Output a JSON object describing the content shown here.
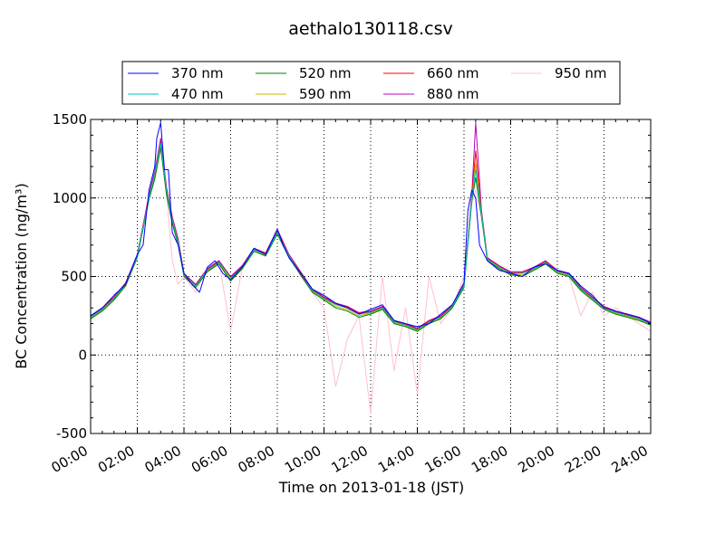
{
  "chart_data": {
    "type": "line",
    "title": "aethalo130118.csv",
    "xlabel": "Time on 2013-01-18 (JST)",
    "ylabel": "BC Concentration (ng/m³)",
    "xlim": [
      "00:00",
      "24:00"
    ],
    "ylim": [
      -500,
      1500
    ],
    "x_ticks": [
      "00:00",
      "02:00",
      "04:00",
      "06:00",
      "08:00",
      "10:00",
      "12:00",
      "14:00",
      "16:00",
      "18:00",
      "20:00",
      "22:00",
      "24:00"
    ],
    "y_ticks": [
      -500,
      0,
      500,
      1000,
      1500
    ],
    "grid": true,
    "legend_position": "top",
    "series": [
      {
        "name": "370 nm",
        "color": "#0000ff",
        "x": [
          "00:00",
          "00:30",
          "01:00",
          "01:30",
          "02:00",
          "02:15",
          "02:30",
          "02:45",
          "02:50",
          "03:00",
          "03:10",
          "03:20",
          "03:30",
          "03:45",
          "04:00",
          "04:20",
          "04:40",
          "05:00",
          "05:20",
          "05:40",
          "06:00",
          "06:30",
          "07:00",
          "07:30",
          "08:00",
          "08:15",
          "08:30",
          "09:00",
          "09:30",
          "10:00",
          "10:30",
          "11:00",
          "11:30",
          "12:00",
          "12:30",
          "13:00",
          "13:30",
          "14:00",
          "14:30",
          "15:00",
          "15:30",
          "16:00",
          "16:10",
          "16:20",
          "16:30",
          "16:40",
          "17:00",
          "17:30",
          "18:00",
          "18:30",
          "19:00",
          "19:30",
          "20:00",
          "20:30",
          "21:00",
          "21:30",
          "22:00",
          "22:30",
          "23:00",
          "23:30",
          "24:00"
        ],
        "y": [
          250,
          300,
          380,
          450,
          640,
          700,
          1050,
          1200,
          1380,
          1480,
          1180,
          1180,
          780,
          700,
          520,
          450,
          400,
          560,
          600,
          520,
          480,
          560,
          680,
          640,
          800,
          700,
          620,
          520,
          420,
          380,
          330,
          300,
          260,
          290,
          320,
          220,
          200,
          180,
          200,
          260,
          320,
          460,
          920,
          1050,
          1000,
          700,
          600,
          540,
          520,
          500,
          560,
          580,
          540,
          520,
          440,
          380,
          300,
          280,
          260,
          240,
          200
        ]
      },
      {
        "name": "470 nm",
        "color": "#00bfbf",
        "x": [
          "00:00",
          "00:30",
          "01:00",
          "01:30",
          "02:00",
          "02:30",
          "02:45",
          "03:00",
          "03:15",
          "03:30",
          "03:45",
          "04:00",
          "04:30",
          "05:00",
          "05:30",
          "06:00",
          "06:30",
          "07:00",
          "07:30",
          "08:00",
          "08:30",
          "09:00",
          "09:30",
          "10:00",
          "10:30",
          "11:00",
          "11:30",
          "12:00",
          "12:30",
          "13:00",
          "13:30",
          "14:00",
          "14:30",
          "15:00",
          "15:30",
          "16:00",
          "16:20",
          "16:30",
          "16:45",
          "17:00",
          "17:30",
          "18:00",
          "18:30",
          "19:00",
          "19:30",
          "20:00",
          "20:30",
          "21:00",
          "21:30",
          "22:00",
          "22:30",
          "23:00",
          "23:30",
          "24:00"
        ],
        "y": [
          240,
          290,
          360,
          450,
          630,
          1000,
          1150,
          1350,
          1050,
          860,
          720,
          510,
          440,
          540,
          590,
          490,
          560,
          670,
          640,
          780,
          630,
          520,
          410,
          360,
          320,
          300,
          260,
          270,
          300,
          210,
          190,
          160,
          210,
          240,
          310,
          440,
          1000,
          1180,
          900,
          610,
          560,
          520,
          520,
          550,
          590,
          530,
          510,
          420,
          360,
          300,
          270,
          250,
          230,
          200
        ]
      },
      {
        "name": "520 nm",
        "color": "#008000",
        "x": [
          "00:00",
          "00:30",
          "01:00",
          "01:30",
          "02:00",
          "02:30",
          "02:45",
          "03:00",
          "03:15",
          "03:30",
          "03:45",
          "04:00",
          "04:30",
          "05:00",
          "05:30",
          "06:00",
          "06:30",
          "07:00",
          "07:30",
          "08:00",
          "08:30",
          "09:00",
          "09:30",
          "10:00",
          "10:30",
          "11:00",
          "11:30",
          "12:00",
          "12:30",
          "13:00",
          "13:30",
          "14:00",
          "14:30",
          "15:00",
          "15:30",
          "16:00",
          "16:20",
          "16:30",
          "16:45",
          "17:00",
          "17:30",
          "18:00",
          "18:30",
          "19:00",
          "19:30",
          "20:00",
          "20:30",
          "21:00",
          "21:30",
          "22:00",
          "22:30",
          "23:00",
          "23:30",
          "24:00"
        ],
        "y": [
          230,
          280,
          350,
          440,
          620,
          990,
          1120,
          1320,
          1020,
          840,
          700,
          500,
          430,
          530,
          580,
          470,
          550,
          660,
          630,
          770,
          620,
          510,
          400,
          350,
          300,
          280,
          240,
          260,
          290,
          200,
          180,
          150,
          200,
          230,
          300,
          430,
          980,
          1130,
          880,
          600,
          550,
          510,
          500,
          540,
          580,
          520,
          500,
          410,
          350,
          290,
          260,
          240,
          220,
          190
        ]
      },
      {
        "name": "590 nm",
        "color": "#bfbf00",
        "x": [
          "00:00",
          "00:30",
          "01:00",
          "01:30",
          "02:00",
          "02:30",
          "02:45",
          "03:00",
          "03:15",
          "03:30",
          "03:45",
          "04:00",
          "04:30",
          "05:00",
          "05:30",
          "06:00",
          "06:30",
          "07:00",
          "07:30",
          "08:00",
          "08:30",
          "09:00",
          "09:30",
          "10:00",
          "10:30",
          "11:00",
          "11:30",
          "12:00",
          "12:30",
          "13:00",
          "13:30",
          "14:00",
          "14:30",
          "15:00",
          "15:30",
          "16:00",
          "16:20",
          "16:30",
          "16:45",
          "17:00",
          "17:30",
          "18:00",
          "18:30",
          "19:00",
          "19:30",
          "20:00",
          "20:30",
          "21:00",
          "21:30",
          "22:00",
          "22:30",
          "23:00",
          "23:30",
          "24:00"
        ],
        "y": [
          235,
          285,
          355,
          445,
          625,
          995,
          1140,
          1340,
          1030,
          850,
          710,
          505,
          435,
          535,
          585,
          480,
          555,
          665,
          635,
          775,
          625,
          515,
          405,
          355,
          310,
          290,
          250,
          265,
          295,
          205,
          185,
          155,
          205,
          235,
          305,
          435,
          990,
          1220,
          890,
          605,
          555,
          515,
          510,
          545,
          585,
          525,
          505,
          415,
          355,
          295,
          265,
          245,
          225,
          195
        ]
      },
      {
        "name": "660 nm",
        "color": "#ff0000",
        "x": [
          "00:00",
          "00:30",
          "01:00",
          "01:30",
          "02:00",
          "02:30",
          "02:45",
          "03:00",
          "03:15",
          "03:30",
          "03:45",
          "04:00",
          "04:30",
          "05:00",
          "05:30",
          "06:00",
          "06:30",
          "07:00",
          "07:30",
          "08:00",
          "08:30",
          "09:00",
          "09:30",
          "10:00",
          "10:30",
          "11:00",
          "11:30",
          "12:00",
          "12:30",
          "13:00",
          "13:30",
          "14:00",
          "14:30",
          "15:00",
          "15:30",
          "16:00",
          "16:20",
          "16:30",
          "16:45",
          "17:00",
          "17:30",
          "18:00",
          "18:30",
          "19:00",
          "19:30",
          "20:00",
          "20:30",
          "21:00",
          "21:30",
          "22:00",
          "22:30",
          "23:00",
          "23:30",
          "24:00"
        ],
        "y": [
          245,
          295,
          365,
          455,
          635,
          1010,
          1160,
          1360,
          1060,
          870,
          730,
          515,
          445,
          545,
          595,
          495,
          565,
          675,
          645,
          790,
          635,
          525,
          415,
          365,
          325,
          305,
          265,
          275,
          305,
          215,
          195,
          165,
          215,
          245,
          315,
          445,
          1010,
          1300,
          910,
          615,
          565,
          525,
          525,
          555,
          595,
          535,
          515,
          425,
          365,
          305,
          275,
          255,
          235,
          205
        ]
      },
      {
        "name": "880 nm",
        "color": "#bf00bf",
        "x": [
          "00:00",
          "00:30",
          "01:00",
          "01:30",
          "02:00",
          "02:30",
          "02:45",
          "03:00",
          "03:15",
          "03:30",
          "03:45",
          "04:00",
          "04:30",
          "05:00",
          "05:30",
          "06:00",
          "06:30",
          "07:00",
          "07:30",
          "08:00",
          "08:30",
          "09:00",
          "09:30",
          "10:00",
          "10:30",
          "11:00",
          "11:30",
          "12:00",
          "12:30",
          "13:00",
          "13:30",
          "14:00",
          "14:30",
          "15:00",
          "15:30",
          "16:00",
          "16:20",
          "16:30",
          "16:45",
          "17:00",
          "17:30",
          "18:00",
          "18:30",
          "19:00",
          "19:30",
          "20:00",
          "20:30",
          "21:00",
          "21:30",
          "22:00",
          "22:30",
          "23:00",
          "23:30",
          "24:00"
        ],
        "y": [
          250,
          300,
          370,
          460,
          640,
          1020,
          1170,
          1380,
          1070,
          880,
          740,
          520,
          450,
          550,
          600,
          500,
          570,
          680,
          650,
          800,
          640,
          530,
          420,
          370,
          330,
          310,
          270,
          280,
          310,
          220,
          200,
          170,
          220,
          250,
          320,
          450,
          1020,
          1480,
          920,
          620,
          570,
          530,
          530,
          560,
          600,
          540,
          520,
          430,
          370,
          310,
          280,
          260,
          240,
          210
        ]
      },
      {
        "name": "950 nm",
        "color": "#ffc0cb",
        "x": [
          "00:00",
          "00:30",
          "01:00",
          "01:30",
          "02:00",
          "02:30",
          "02:45",
          "03:00",
          "03:15",
          "03:30",
          "03:45",
          "04:00",
          "04:30",
          "05:00",
          "05:30",
          "06:00",
          "06:30",
          "07:00",
          "07:30",
          "08:00",
          "08:30",
          "09:00",
          "09:30",
          "10:00",
          "10:30",
          "11:00",
          "11:30",
          "12:00",
          "12:30",
          "13:00",
          "13:30",
          "14:00",
          "14:30",
          "15:00",
          "15:30",
          "16:00",
          "16:20",
          "16:30",
          "16:45",
          "17:00",
          "17:30",
          "18:00",
          "18:30",
          "19:00",
          "19:30",
          "20:00",
          "20:30",
          "21:00",
          "21:30",
          "22:00",
          "22:30",
          "23:00",
          "23:30",
          "24:00"
        ],
        "y": [
          240,
          290,
          360,
          450,
          630,
          1000,
          1150,
          1350,
          1040,
          600,
          450,
          500,
          400,
          560,
          600,
          150,
          560,
          680,
          640,
          800,
          640,
          500,
          400,
          300,
          -200,
          100,
          250,
          -370,
          500,
          -100,
          300,
          -250,
          500,
          200,
          300,
          500,
          960,
          1050,
          880,
          600,
          550,
          520,
          500,
          540,
          580,
          520,
          500,
          250,
          400,
          250,
          300,
          250,
          200,
          150
        ]
      }
    ]
  }
}
